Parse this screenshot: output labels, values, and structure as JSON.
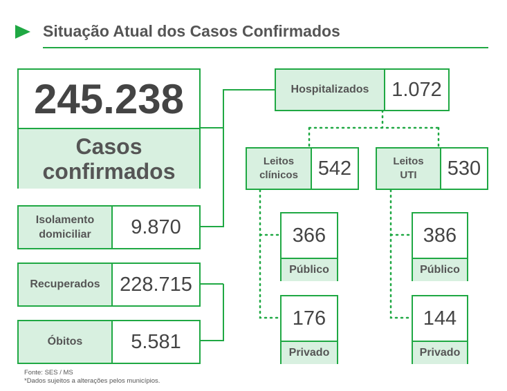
{
  "header": {
    "title": "Situação Atual dos Casos Confirmados"
  },
  "colors": {
    "accent": "#1fa843",
    "label_fill": "#d8f0e0",
    "text": "#555555"
  },
  "main": {
    "total": {
      "value": "245.238",
      "label_line1": "Casos",
      "label_line2": "confirmados"
    },
    "isolamento": {
      "label_line1": "Isolamento",
      "label_line2": "domiciliar",
      "value": "9.870"
    },
    "recuperados": {
      "label": "Recuperados",
      "value": "228.715"
    },
    "obitos": {
      "label": "Óbitos",
      "value": "5.581"
    },
    "hospitalizados": {
      "label": "Hospitalizados",
      "value": "1.072"
    },
    "leitos_clinicos": {
      "label_line1": "Leitos",
      "label_line2": "clínicos",
      "value": "542",
      "publico": {
        "value": "366",
        "label": "Público"
      },
      "privado": {
        "value": "176",
        "label": "Privado"
      }
    },
    "leitos_uti": {
      "label_line1": "Leitos",
      "label_line2": "UTI",
      "value": "530",
      "publico": {
        "value": "386",
        "label": "Público"
      },
      "privado": {
        "value": "144",
        "label": "Privado"
      }
    }
  },
  "footer": {
    "source": "Fonte: SES / MS",
    "note": "*Dados sujeitos a alterações pelos municípios."
  }
}
